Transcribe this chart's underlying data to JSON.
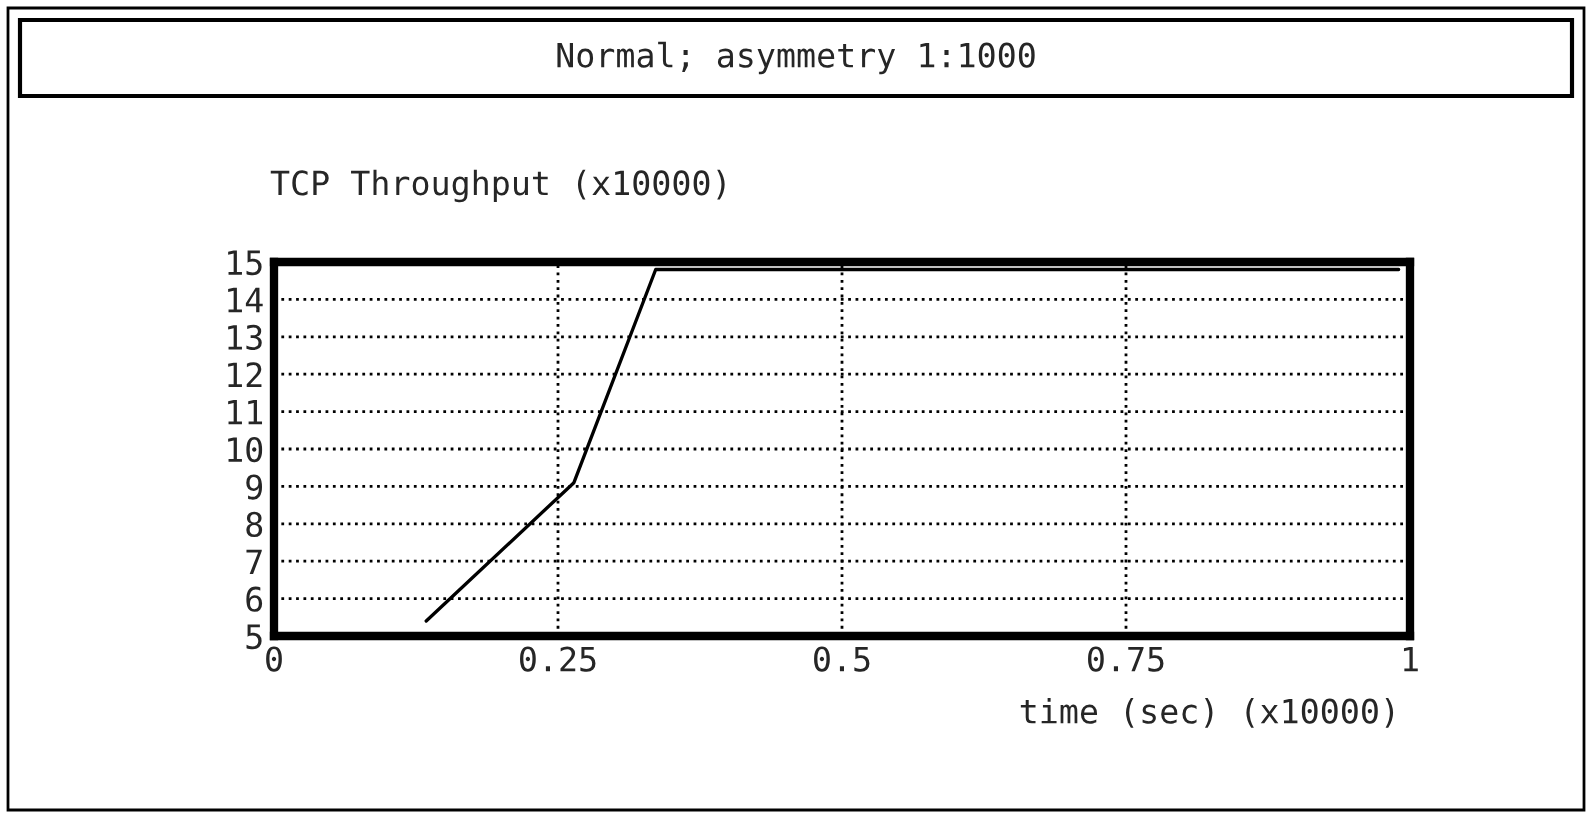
{
  "chart_data": {
    "type": "line",
    "title": "Normal; asymmetry 1:1000",
    "ylabel": "TCP Throughput (x10000)",
    "xlabel": "time (sec) (x10000)",
    "x": [
      0.134,
      0.264,
      0.336,
      0.99
    ],
    "series": [
      {
        "color": "#000000",
        "values": [
          5.4,
          9.1,
          14.8,
          14.8
        ]
      }
    ],
    "xlim": [
      0,
      1
    ],
    "xticks": [
      0,
      0.25,
      0.5,
      0.75,
      1
    ],
    "ylim": [
      5,
      15
    ],
    "yticks": [
      5,
      6,
      7,
      8,
      9,
      10,
      11,
      12,
      13,
      14,
      15
    ],
    "grid": true,
    "line_style": "solid",
    "marker": "none",
    "legend": false
  }
}
